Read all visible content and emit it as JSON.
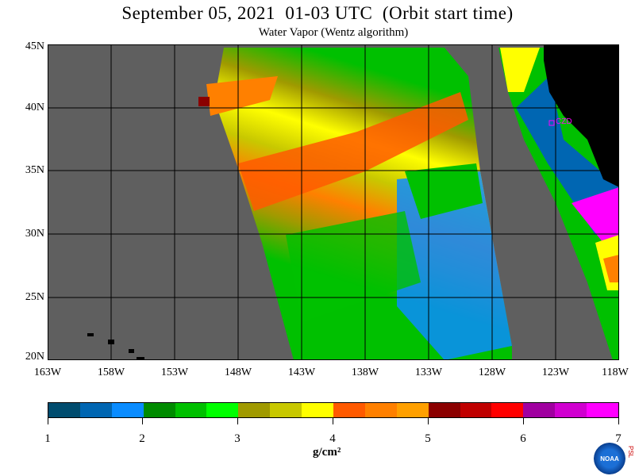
{
  "title": "September 05, 2021  01-03 UTC  (Orbit start time)",
  "subtitle": "Water Vapor (Wentz algorithm)",
  "map": {
    "lat_labels": [
      "45N",
      "40N",
      "35N",
      "30N",
      "25N",
      "20N"
    ],
    "lon_labels": [
      "163W",
      "158W",
      "153W",
      "148W",
      "143W",
      "138W",
      "133W",
      "128W",
      "123W",
      "118W"
    ],
    "station_label": "CZD"
  },
  "colorbar": {
    "tick_labels": [
      "1",
      "2",
      "3",
      "4",
      "5",
      "6",
      "7"
    ],
    "units": "g/cm²",
    "colors": [
      "#004c6e",
      "#0066b2",
      "#0a8cff",
      "#008b00",
      "#00c000",
      "#00ff00",
      "#a09a00",
      "#c8c800",
      "#ffff00",
      "#ff5a00",
      "#ff8000",
      "#ffa000",
      "#8b0000",
      "#c00000",
      "#ff0000",
      "#a000a0",
      "#d000d0",
      "#ff00ff"
    ]
  },
  "colors": {
    "land": "#000000",
    "no_data": "#5f5f5f",
    "station": "#ff00ff"
  },
  "logos": {
    "agency": "NOAA",
    "lab": "PSL"
  }
}
